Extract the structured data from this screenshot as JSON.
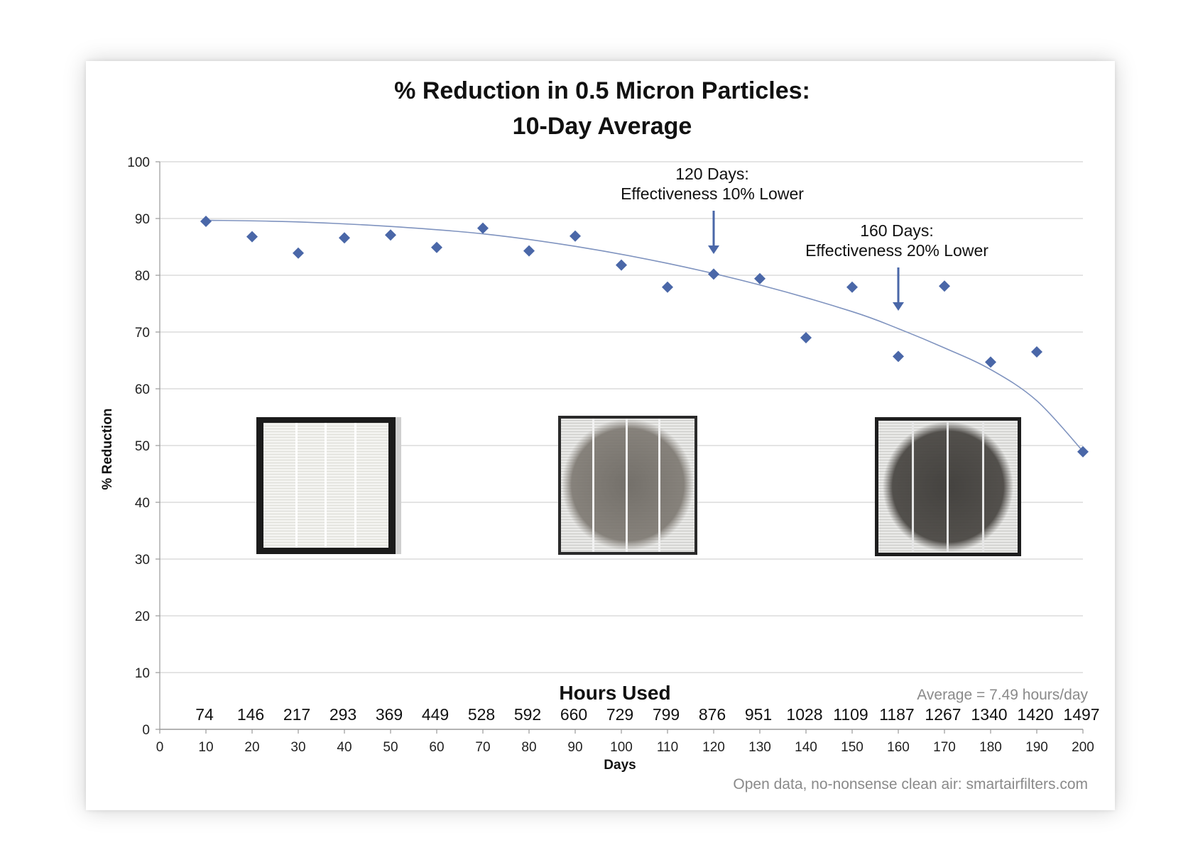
{
  "chart_data": {
    "type": "scatter",
    "title_line1": "% Reduction in 0.5 Micron Particles:",
    "title_line2": "10-Day Average",
    "xlabel": "Days",
    "ylabel": "% Reduction",
    "xlim": [
      0,
      200
    ],
    "ylim": [
      0,
      100
    ],
    "x_ticks": [
      0,
      10,
      20,
      30,
      40,
      50,
      60,
      70,
      80,
      90,
      100,
      110,
      120,
      130,
      140,
      150,
      160,
      170,
      180,
      190,
      200
    ],
    "y_ticks": [
      0,
      10,
      20,
      30,
      40,
      50,
      60,
      70,
      80,
      90,
      100
    ],
    "grid": "horizontal",
    "marker_color": "#4a67a8",
    "trendline_color": "#7f93bf",
    "points": [
      {
        "x": 10,
        "y": 89.5
      },
      {
        "x": 20,
        "y": 86.8
      },
      {
        "x": 30,
        "y": 83.9
      },
      {
        "x": 40,
        "y": 86.6
      },
      {
        "x": 50,
        "y": 87.1
      },
      {
        "x": 60,
        "y": 84.9
      },
      {
        "x": 70,
        "y": 88.3
      },
      {
        "x": 80,
        "y": 84.3
      },
      {
        "x": 90,
        "y": 86.9
      },
      {
        "x": 100,
        "y": 81.8
      },
      {
        "x": 110,
        "y": 77.9
      },
      {
        "x": 120,
        "y": 80.2
      },
      {
        "x": 130,
        "y": 79.4
      },
      {
        "x": 140,
        "y": 69.0
      },
      {
        "x": 150,
        "y": 77.9
      },
      {
        "x": 160,
        "y": 65.7
      },
      {
        "x": 170,
        "y": 78.1
      },
      {
        "x": 180,
        "y": 64.7
      },
      {
        "x": 190,
        "y": 66.5
      },
      {
        "x": 200,
        "y": 48.9
      }
    ],
    "trendline": [
      {
        "x": 10,
        "y": 89.7
      },
      {
        "x": 30,
        "y": 89.4
      },
      {
        "x": 50,
        "y": 88.6
      },
      {
        "x": 70,
        "y": 87.3
      },
      {
        "x": 90,
        "y": 85.1
      },
      {
        "x": 110,
        "y": 82.1
      },
      {
        "x": 130,
        "y": 78.3
      },
      {
        "x": 150,
        "y": 73.6
      },
      {
        "x": 160,
        "y": 70.6
      },
      {
        "x": 170,
        "y": 67.2
      },
      {
        "x": 180,
        "y": 63.4
      },
      {
        "x": 190,
        "y": 57.9
      },
      {
        "x": 200,
        "y": 49.0
      }
    ],
    "hours_used_title": "Hours Used",
    "hours_used": [
      {
        "x": 10,
        "label": "74"
      },
      {
        "x": 20,
        "label": "146"
      },
      {
        "x": 30,
        "label": "217"
      },
      {
        "x": 40,
        "label": "293"
      },
      {
        "x": 50,
        "label": "369"
      },
      {
        "x": 60,
        "label": "449"
      },
      {
        "x": 70,
        "label": "528"
      },
      {
        "x": 80,
        "label": "592"
      },
      {
        "x": 90,
        "label": "660"
      },
      {
        "x": 100,
        "label": "729"
      },
      {
        "x": 110,
        "label": "799"
      },
      {
        "x": 120,
        "label": "876"
      },
      {
        "x": 130,
        "label": "951"
      },
      {
        "x": 140,
        "label": "1028"
      },
      {
        "x": 150,
        "label": "1109"
      },
      {
        "x": 160,
        "label": "1187"
      },
      {
        "x": 170,
        "label": "1267"
      },
      {
        "x": 180,
        "label": "1340"
      },
      {
        "x": 190,
        "label": "1420"
      },
      {
        "x": 200,
        "label": "1497"
      }
    ],
    "annotations": [
      {
        "x": 120,
        "line1": "120 Days:",
        "line2": "Effectiveness 10% Lower"
      },
      {
        "x": 160,
        "line1": "160 Days:",
        "line2": "Effectiveness 20% Lower"
      }
    ],
    "average_note": "Average = 7.49 hours/day",
    "source_note": "Open data, no-nonsense clean air: smartairfilters.com",
    "filter_photos": [
      "new-filter-photo",
      "used-filter-photo",
      "heavily-used-filter-photo"
    ]
  }
}
